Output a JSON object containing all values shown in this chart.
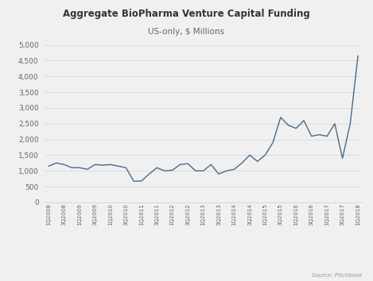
{
  "title": "Aggregate BioPharma Venture Capital Funding",
  "subtitle": "US-only, $ Millions",
  "source": "Source: Pitchbook",
  "line_color": "#4a6a8a",
  "background_color": "#f7f7f7",
  "ylim": [
    0,
    5000
  ],
  "yticks": [
    0,
    500,
    1000,
    1500,
    2000,
    2500,
    3000,
    3500,
    4000,
    4500,
    5000
  ],
  "tick_labels": [
    "1Q2008",
    "3Q2008",
    "1Q2009",
    "3Q2009",
    "1Q2010",
    "3Q2010",
    "1Q2011",
    "3Q2011",
    "1Q2012",
    "3Q2012",
    "1Q2013",
    "3Q2013",
    "1Q2014",
    "3Q2014",
    "1Q2015",
    "3Q2015",
    "1Q2016",
    "3Q2016",
    "1Q2017",
    "3Q2017",
    "1Q2018"
  ],
  "all_vals": [
    1150,
    1250,
    1200,
    1100,
    1100,
    1050,
    1200,
    1180,
    1200,
    1150,
    1100,
    670,
    680,
    900,
    1100,
    1000,
    1020,
    1200,
    1230,
    1000,
    1000,
    1200,
    900,
    1000,
    1050,
    1250,
    1500,
    1300,
    1500,
    1900,
    2700,
    2450,
    2350,
    2600,
    2100,
    2150,
    2100,
    2500,
    1400,
    2500,
    4650
  ]
}
